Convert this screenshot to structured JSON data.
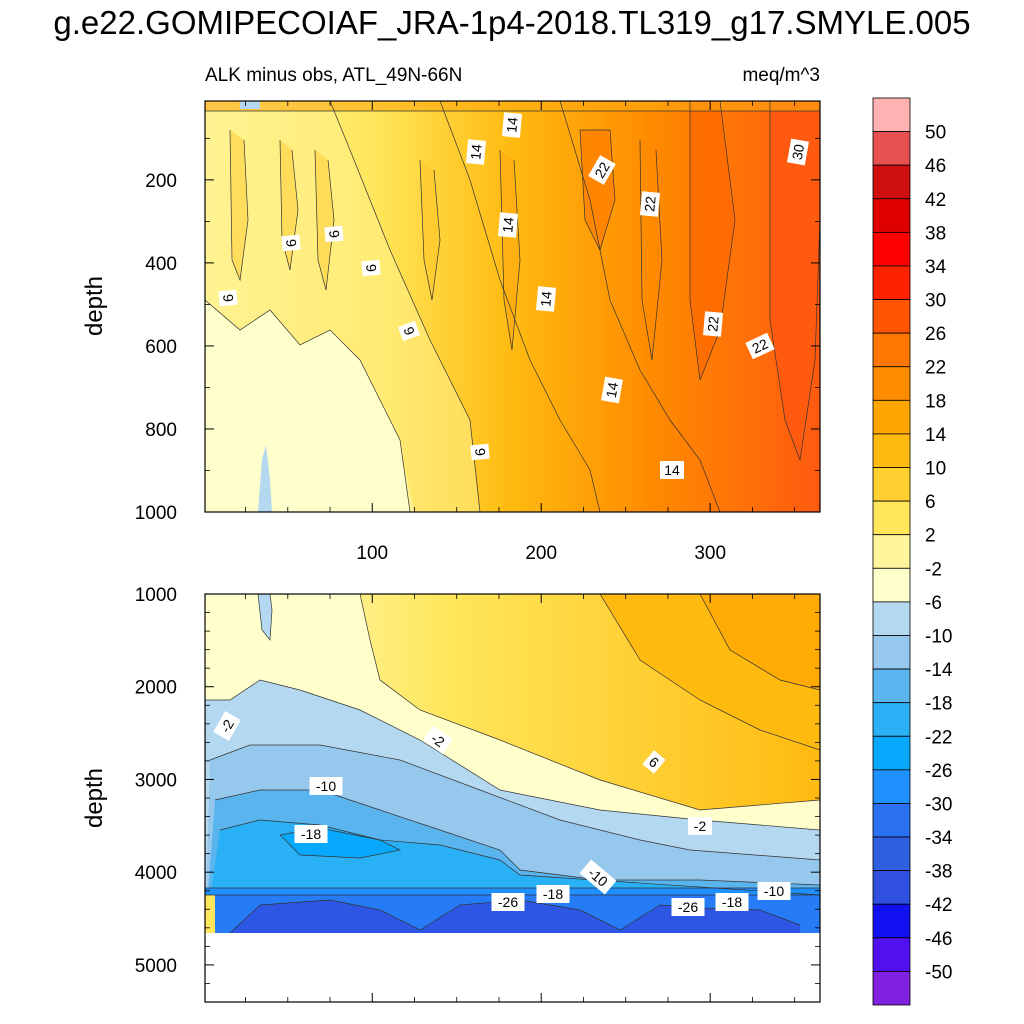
{
  "title": "g.e22.GOMIPECOIAF_JRA-1p4-2018.TL319_g17.SMYLE.005",
  "chart_data": {
    "type": "contour",
    "subtitle_left": "ALK minus obs, ATL_49N-66N",
    "subtitle_right": "meq/m^3",
    "ylabel": "depth",
    "xlabel": "",
    "x_range": [
      1,
      365
    ],
    "x_ticks": [
      "100",
      "200",
      "300"
    ],
    "top_panel": {
      "depth_range": [
        10,
        1000
      ],
      "y_ticks": [
        "200",
        "400",
        "600",
        "800",
        "1000"
      ],
      "contour_labels": [
        "14",
        "14",
        "22",
        "30",
        "22",
        "14",
        "6",
        "6",
        "6",
        "6",
        "14",
        "6",
        "22",
        "22",
        "14",
        "6",
        "14"
      ]
    },
    "bottom_panel": {
      "depth_range": [
        1000,
        5400
      ],
      "y_ticks": [
        "1000",
        "2000",
        "3000",
        "4000",
        "5000"
      ],
      "contour_labels": [
        "-2",
        "-2",
        "6",
        "-10",
        "-2",
        "-18",
        "-10",
        "-26",
        "-18",
        "-26",
        "-18",
        "-10"
      ]
    },
    "colorbar": {
      "levels": [
        "50",
        "46",
        "42",
        "38",
        "34",
        "30",
        "26",
        "22",
        "18",
        "14",
        "10",
        "6",
        "2",
        "-2",
        "-6",
        "-10",
        "-14",
        "-18",
        "-22",
        "-26",
        "-30",
        "-34",
        "-38",
        "-42",
        "-46",
        "-50"
      ],
      "colors": [
        "#ffb2b2",
        "#e85050",
        "#d01010",
        "#e00000",
        "#ff0000",
        "#ff2200",
        "#ff5500",
        "#ff7700",
        "#ff8c00",
        "#ffa500",
        "#ffba10",
        "#ffd030",
        "#ffe65a",
        "#fff59b",
        "#ffffcc",
        "#b4d8f0",
        "#96c8ee",
        "#5ab4ee",
        "#2ab0f5",
        "#08a8fc",
        "#1e90ff",
        "#2a70f0",
        "#3060e0",
        "#3050e0",
        "#1010f0",
        "#5010f0",
        "#8020e0"
      ]
    }
  }
}
